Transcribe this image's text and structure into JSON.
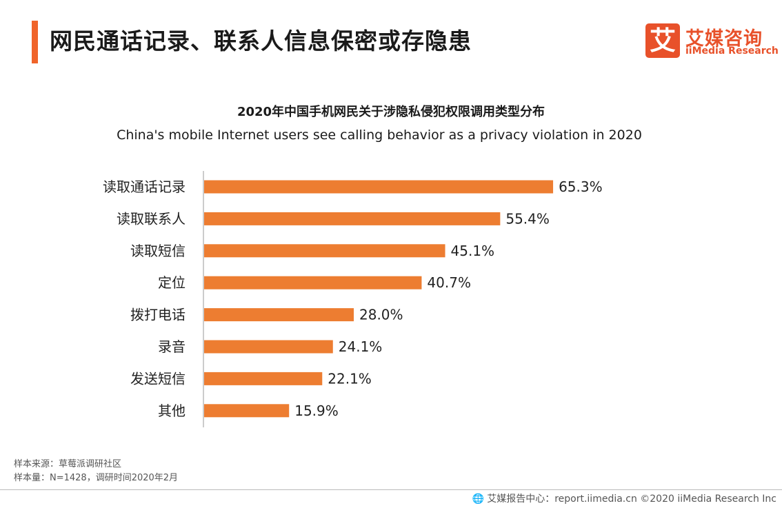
{
  "header": {
    "title": "网民通话记录、联系人信息保密或存隐患"
  },
  "logo": {
    "mark": "艾",
    "name_cn": "艾媒咨询",
    "name_en": "iiMedia Research"
  },
  "chart_data": {
    "type": "bar",
    "orientation": "horizontal",
    "title": "2020年中国手机网民关于涉隐私侵犯权限调用类型分布",
    "subtitle": "China's mobile Internet users see calling behavior as a privacy violation in 2020",
    "categories": [
      "读取通话记录",
      "读取联系人",
      "读取短信",
      "定位",
      "拨打电话",
      "录音",
      "发送短信",
      "其他"
    ],
    "values": [
      65.3,
      55.4,
      45.1,
      40.7,
      28.0,
      24.1,
      22.1,
      15.9
    ],
    "value_labels": [
      "65.3%",
      "55.4%",
      "45.1%",
      "40.7%",
      "28.0%",
      "24.1%",
      "22.1%",
      "15.9%"
    ],
    "unit": "%",
    "xlim": [
      0,
      100
    ],
    "bar_color": "#ed7d31",
    "grid": false,
    "legend": "none"
  },
  "notes": {
    "source": "样本来源：草莓派调研社区",
    "sample": "样本量：N=1428，调研时间2020年2月"
  },
  "footer": {
    "text": "艾媒报告中心：report.iimedia.cn  ©2020  iiMedia Research Inc"
  },
  "colors": {
    "accent": "#f0642a",
    "brand": "#e8512a",
    "bar": "#ed7d31"
  }
}
